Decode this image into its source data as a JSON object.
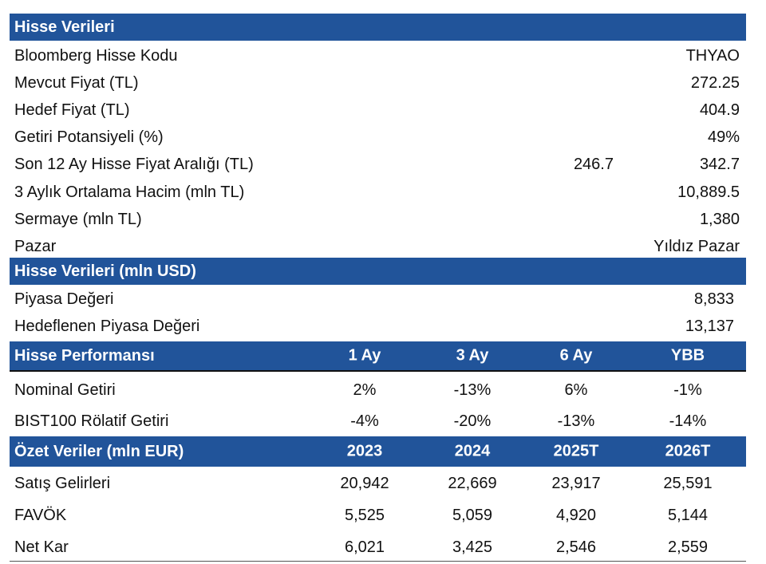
{
  "section1": {
    "title": "Hisse Verileri",
    "rows": [
      {
        "label": "Bloomberg Hisse Kodu",
        "value": "THYAO"
      },
      {
        "label": "Mevcut Fiyat (TL)",
        "value": "272.25"
      },
      {
        "label": "Hedef Fiyat (TL)",
        "value": "404.9"
      },
      {
        "label": "Getiri Potansiyeli (%)",
        "value": "49%"
      },
      {
        "label": "Son 12 Ay Hisse Fiyat Aralığı (TL)",
        "low": "246.7",
        "value": "342.7"
      },
      {
        "label": "3 Aylık Ortalama Hacim (mln TL)",
        "value": "10,889.5"
      },
      {
        "label": "Sermaye (mln TL)",
        "value": "1,380"
      },
      {
        "label": "Pazar",
        "value": "Yıldız Pazar"
      }
    ]
  },
  "section2": {
    "title": "Hisse Verileri (mln USD)",
    "rows": [
      {
        "label": "Piyasa Değeri",
        "value": "8,833"
      },
      {
        "label": "Hedeflenen Piyasa Değeri",
        "value": "13,137"
      }
    ]
  },
  "section3": {
    "title": "Hisse Performansı",
    "columns": [
      "1 Ay",
      "3 Ay",
      "6 Ay",
      "YBB"
    ],
    "rows": [
      {
        "label": "Nominal Getiri",
        "values": [
          "2%",
          "-13%",
          "6%",
          "-1%"
        ]
      },
      {
        "label": "BIST100 Rölatif Getiri",
        "values": [
          "-4%",
          "-20%",
          "-13%",
          "-14%"
        ]
      }
    ]
  },
  "section4": {
    "title": "Özet Veriler (mln EUR)",
    "columns": [
      "2023",
      "2024",
      "2025T",
      "2026T"
    ],
    "rows": [
      {
        "label": "Satış Gelirleri",
        "values": [
          "20,942",
          "22,669",
          "23,917",
          "25,591"
        ]
      },
      {
        "label": "FAVÖK",
        "values": [
          "5,525",
          "5,059",
          "4,920",
          "5,144"
        ]
      },
      {
        "label": "Net Kar",
        "values": [
          "6,021",
          "3,425",
          "2,546",
          "2,559"
        ]
      }
    ]
  }
}
